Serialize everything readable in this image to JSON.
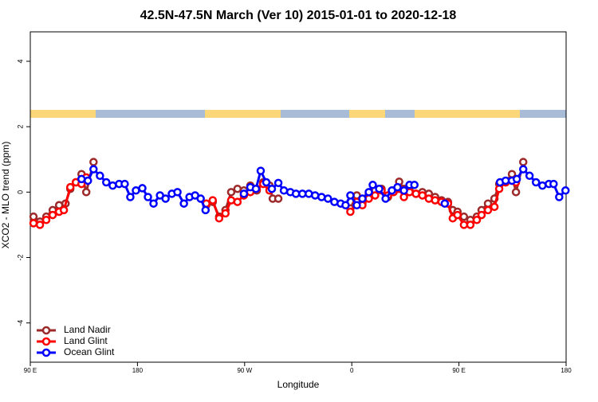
{
  "chart_data": {
    "type": "line",
    "title": "42.5N-47.5N March (Ver 10)   2015-01-01 to 2020-12-18",
    "xlabel": "Longitude",
    "ylabel": "XCO2 - MLO trend (ppm)",
    "xlim": [
      90,
      540
    ],
    "ylim": [
      -5.2,
      4.9
    ],
    "xticks": [
      {
        "value": 90,
        "label": "90 E"
      },
      180,
      {
        "value": 270,
        "label": "90 W"
      },
      {
        "value": 360,
        "label": "0"
      },
      {
        "value": 450,
        "label": "90 E"
      },
      180
    ],
    "yticks": [
      -4,
      -2,
      0,
      2,
      4
    ],
    "legend": "bottom-left",
    "series": [
      {
        "name": "Land Nadir",
        "color": "#9c2a2a",
        "x": [
          92.7,
          98.1,
          103.4,
          108.8,
          114.2,
          119.6,
          123.6,
          128.3,
          133,
          137,
          143.1,
          null,
          237.8,
          243.2,
          248.6,
          253.9,
          258.7,
          264,
          269.4,
          274.8,
          280.2,
          285.6,
          290.9,
          293.6,
          298.3,
          null,
          358.8,
          364.2,
          368.9,
          374.3,
          379.6,
          385,
          390.4,
          395.1,
          399.8,
          403.8,
          408.5,
          413.9,
          419.3,
          424.7,
          430,
          435.4,
          440.8,
          444.8,
          448.8,
          454.2,
          459.6,
          465,
          469,
          474.4,
          479.8,
          483.8,
          489.2,
          494.5,
          497.9,
          504
        ],
        "values": [
          -0.75,
          -0.9,
          -0.75,
          -0.55,
          -0.4,
          -0.35,
          0.1,
          0.3,
          0.55,
          0,
          0.92,
          null,
          -0.4,
          -0.3,
          -0.75,
          -0.55,
          0,
          0.1,
          0.05,
          0.2,
          0.05,
          0.3,
          0.2,
          -0.2,
          -0.2,
          null,
          -0.5,
          -0.1,
          -0.35,
          -0.05,
          0.05,
          0.1,
          -0.15,
          0.05,
          0.32,
          0.1,
          0.05,
          -0.05,
          0,
          -0.05,
          -0.15,
          -0.25,
          -0.3,
          -0.55,
          -0.6,
          -0.75,
          -0.85,
          -0.75,
          -0.55,
          -0.35,
          -0.2,
          0.25,
          0.3,
          0.55,
          0,
          0.92
        ]
      },
      {
        "name": "Land Glint",
        "color": "#ff0000",
        "x": [
          92.7,
          98.1,
          103.4,
          108.8,
          114.2,
          118.2,
          123.6,
          128.3,
          133,
          137,
          null,
          237.8,
          243.2,
          248.6,
          253.9,
          258.7,
          264,
          269.4,
          274.8,
          280.2,
          285.6,
          290.9,
          null,
          358.8,
          364.2,
          368.9,
          374.3,
          379.6,
          385,
          390.4,
          395.1,
          399.8,
          403.8,
          408.5,
          413.9,
          419.3,
          424.7,
          430,
          435.4,
          440.8,
          444.8,
          448.8,
          454.2,
          459.6,
          465,
          469,
          474.4,
          479.8,
          483.8,
          489.2,
          494.5,
          497.9
        ],
        "values": [
          -0.95,
          -1.0,
          -0.85,
          -0.7,
          -0.6,
          -0.55,
          0.15,
          0.3,
          0.25,
          0.45,
          null,
          -0.35,
          -0.25,
          -0.8,
          -0.65,
          -0.25,
          -0.3,
          -0.1,
          0,
          0.1,
          0.25,
          0.05,
          null,
          -0.6,
          -0.3,
          -0.4,
          -0.2,
          -0.1,
          0.05,
          -0.1,
          0,
          0.1,
          -0.15,
          0,
          -0.05,
          -0.1,
          -0.2,
          -0.25,
          -0.3,
          -0.35,
          -0.8,
          -0.7,
          -1.0,
          -1.0,
          -0.85,
          -0.7,
          -0.55,
          -0.45,
          0.1,
          0.3,
          0.35,
          0.3
        ]
      },
      {
        "name": "Ocean Glint",
        "color": "#0000ff",
        "x": [
          133,
          138.4,
          143.1,
          148.5,
          153.8,
          159.2,
          164.6,
          169.3,
          174,
          178.7,
          184.1,
          188.8,
          193.5,
          198.9,
          203.6,
          208.9,
          213.6,
          219,
          223.7,
          228.4,
          233.1,
          237.2,
          null,
          269.4,
          274.8,
          279.5,
          283.5,
          288.2,
          292.9,
          298.3,
          303,
          308.4,
          313.1,
          318.5,
          323.9,
          329.2,
          334.6,
          340,
          345.4,
          350.7,
          354.8,
          358.8,
          364.2,
          368.9,
          374.3,
          377.6,
          383,
          388.4,
          393.7,
          398.4,
          403.8,
          408.5,
          412.6,
          null,
          438.1,
          null,
          484.5,
          489.2,
          494.5,
          498.6,
          504,
          509.3,
          514.7,
          520.1,
          525.5,
          529.5,
          534.2,
          539.5
        ],
        "values": [
          0.4,
          0.35,
          0.7,
          0.5,
          0.3,
          0.2,
          0.25,
          0.25,
          -0.15,
          0.05,
          0.12,
          -0.15,
          -0.35,
          -0.1,
          -0.2,
          -0.05,
          0,
          -0.35,
          -0.15,
          -0.1,
          -0.2,
          -0.55,
          null,
          -0.05,
          0.15,
          0.1,
          0.65,
          0.3,
          0.1,
          0.28,
          0.05,
          0,
          -0.05,
          -0.05,
          -0.05,
          -0.1,
          -0.15,
          -0.2,
          -0.3,
          -0.35,
          -0.4,
          -0.1,
          -0.4,
          -0.2,
          0,
          0.22,
          0.1,
          -0.2,
          0.05,
          0.15,
          0.05,
          0.22,
          0.22,
          null,
          -0.35,
          null,
          0.3,
          0.35,
          0.35,
          0.4,
          0.7,
          0.5,
          0.3,
          0.2,
          0.25,
          0.25,
          -0.15,
          0.05
        ]
      }
    ]
  }
}
